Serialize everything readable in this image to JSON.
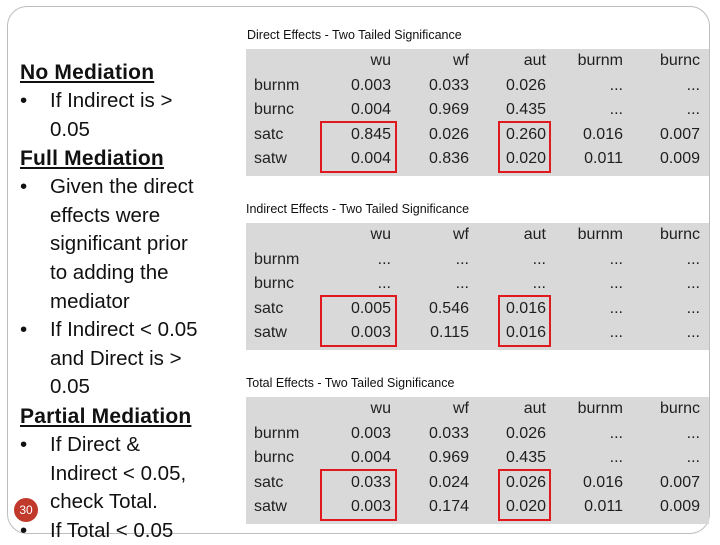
{
  "slide_number": "30",
  "left_text": {
    "no_mediation": {
      "heading": "No Mediation",
      "bullets": [
        [
          "If Indirect is >",
          "0.05"
        ]
      ]
    },
    "full_mediation": {
      "heading": "Full Mediation",
      "bullets": [
        [
          "Given the direct",
          "effects were",
          "significant prior",
          "to adding the",
          "mediator"
        ],
        [
          "If Indirect < 0.05",
          "and Direct is >",
          "0.05"
        ]
      ]
    },
    "partial_mediation": {
      "heading": "Partial Mediation",
      "bullets": [
        [
          "If Direct &",
          "Indirect < 0.05,",
          "check Total."
        ],
        [
          "If Total < 0.05"
        ]
      ]
    }
  },
  "highlight_color": "#e0191f",
  "tables": [
    {
      "caption": "Direct Effects - Two Tailed Significance",
      "columns": [
        "wu",
        "wf",
        "aut",
        "burnm",
        "burnc"
      ],
      "rows": [
        {
          "label": "burnm",
          "values": [
            "0.003",
            "0.033",
            "0.026",
            "...",
            "..."
          ]
        },
        {
          "label": "burnc",
          "values": [
            "0.004",
            "0.969",
            "0.435",
            "...",
            "..."
          ]
        },
        {
          "label": "satc",
          "values": [
            "0.845",
            "0.026",
            "0.260",
            "0.016",
            "0.007"
          ]
        },
        {
          "label": "satw",
          "values": [
            "0.004",
            "0.836",
            "0.020",
            "0.011",
            "0.009"
          ]
        }
      ]
    },
    {
      "caption": "Indirect Effects - Two Tailed Significance",
      "columns": [
        "wu",
        "wf",
        "aut",
        "burnm",
        "burnc"
      ],
      "rows": [
        {
          "label": "burnm",
          "values": [
            "...",
            "...",
            "...",
            "...",
            "..."
          ]
        },
        {
          "label": "burnc",
          "values": [
            "...",
            "...",
            "...",
            "...",
            "..."
          ]
        },
        {
          "label": "satc",
          "values": [
            "0.005",
            "0.546",
            "0.016",
            "...",
            "..."
          ]
        },
        {
          "label": "satw",
          "values": [
            "0.003",
            "0.115",
            "0.016",
            "...",
            "..."
          ]
        }
      ]
    },
    {
      "caption": "Total Effects - Two Tailed Significance",
      "columns": [
        "wu",
        "wf",
        "aut",
        "burnm",
        "burnc"
      ],
      "rows": [
        {
          "label": "burnm",
          "values": [
            "0.003",
            "0.033",
            "0.026",
            "...",
            "..."
          ]
        },
        {
          "label": "burnc",
          "values": [
            "0.004",
            "0.969",
            "0.435",
            "...",
            "..."
          ]
        },
        {
          "label": "satc",
          "values": [
            "0.033",
            "0.024",
            "0.026",
            "0.016",
            "0.007"
          ]
        },
        {
          "label": "satw",
          "values": [
            "0.003",
            "0.174",
            "0.020",
            "0.011",
            "0.009"
          ]
        }
      ]
    }
  ]
}
